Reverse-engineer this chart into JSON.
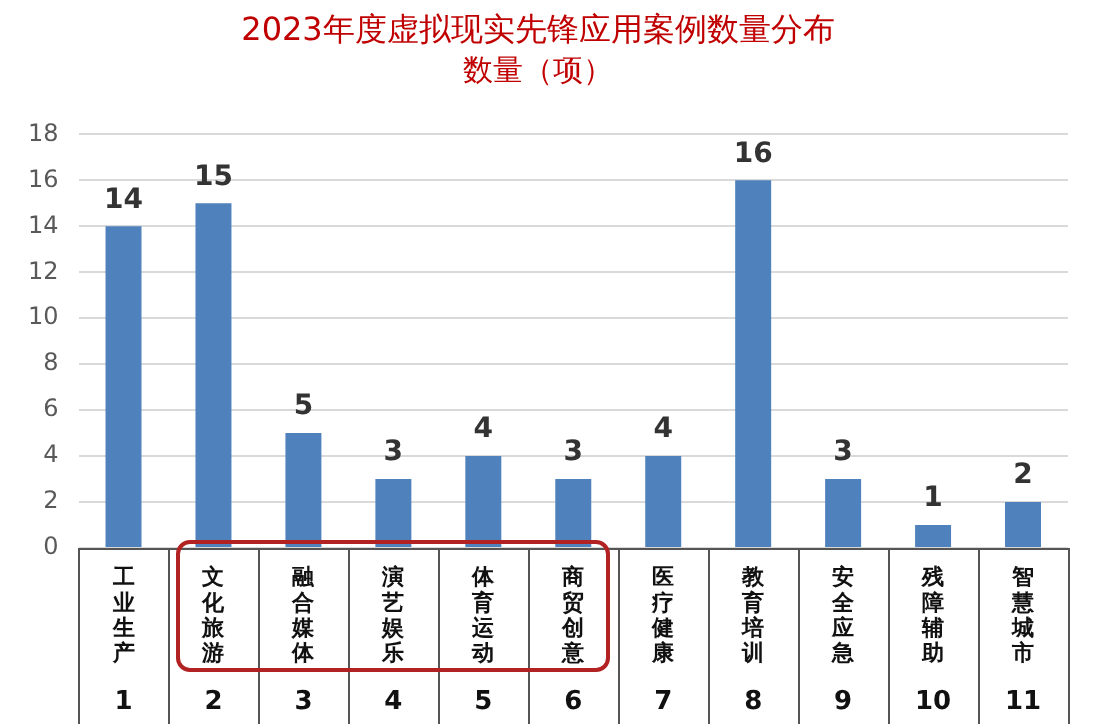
{
  "chart_data": {
    "type": "bar",
    "title": "2023年度虚拟现实先锋应用案例数量分布",
    "subtitle": "数量（项）",
    "categories": [
      "工业生产",
      "文化旅游",
      "融合媒体",
      "演艺娱乐",
      "体育运动",
      "商贸创意",
      "医疗健康",
      "教育培训",
      "安全应急",
      "残障辅助",
      "智慧城市"
    ],
    "values": [
      14,
      15,
      5,
      3,
      4,
      3,
      4,
      16,
      3,
      1,
      2
    ],
    "color": "#4f81bd",
    "data_labels": true,
    "ylim": [
      0,
      18
    ],
    "yticks": [
      0,
      2,
      4,
      6,
      8,
      10,
      12,
      14,
      16,
      18
    ],
    "grid": "y",
    "legend": false,
    "annotations": [
      "1",
      "2",
      "3",
      "4",
      "5",
      "6",
      "7",
      "8",
      "9",
      "10",
      "11"
    ]
  }
}
